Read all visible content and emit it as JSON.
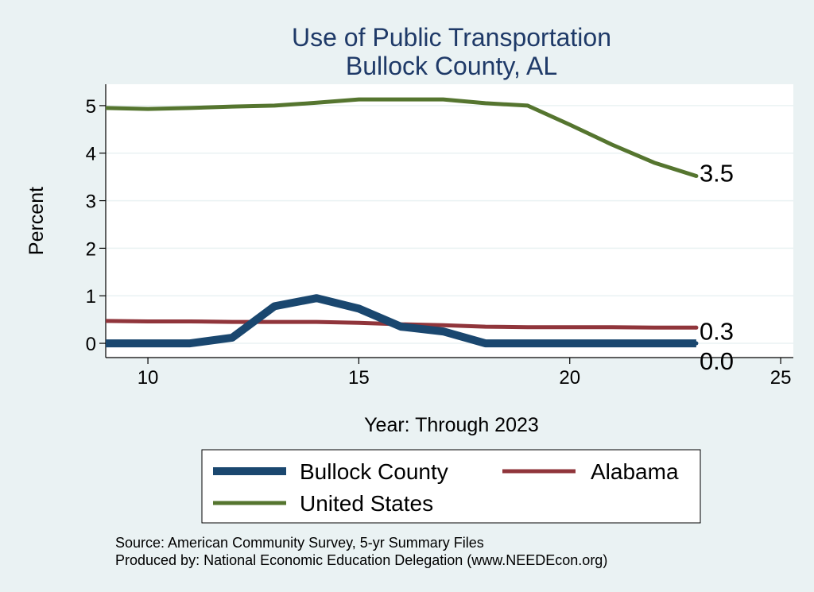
{
  "chart_data": {
    "type": "line",
    "title": "Use of Public Transportation",
    "subtitle": "Bullock County, AL",
    "xlabel": "Year: Through 2023",
    "ylabel": "Percent",
    "xlim": [
      9,
      25.3
    ],
    "ylim": [
      -0.3,
      5.45
    ],
    "x_ticks": [
      10,
      15,
      20,
      25
    ],
    "y_ticks": [
      0,
      1,
      2,
      3,
      4,
      5
    ],
    "grid": true,
    "legend_position": "bottom",
    "series": [
      {
        "name": "Bullock County",
        "color": "#1a476f",
        "x": [
          9,
          10,
          11,
          12,
          13,
          14,
          15,
          16,
          17,
          18,
          19,
          20,
          21,
          22,
          23
        ],
        "values": [
          0,
          0,
          0,
          0.12,
          0.78,
          0.95,
          0.73,
          0.35,
          0.25,
          0,
          0,
          0,
          0,
          0,
          0
        ],
        "end_label": "0.0"
      },
      {
        "name": "Alabama",
        "color": "#90353b",
        "x": [
          9,
          10,
          11,
          12,
          13,
          14,
          15,
          16,
          17,
          18,
          19,
          20,
          21,
          22,
          23
        ],
        "values": [
          0.47,
          0.46,
          0.46,
          0.45,
          0.45,
          0.45,
          0.43,
          0.4,
          0.38,
          0.35,
          0.34,
          0.34,
          0.34,
          0.33,
          0.33
        ],
        "end_label": "0.3"
      },
      {
        "name": "United States",
        "color": "#55752f",
        "x": [
          9,
          10,
          11,
          12,
          13,
          14,
          15,
          16,
          17,
          18,
          19,
          20,
          21,
          22,
          23
        ],
        "values": [
          4.95,
          4.93,
          4.95,
          4.98,
          5.0,
          5.06,
          5.13,
          5.13,
          5.13,
          5.05,
          5.0,
          4.6,
          4.18,
          3.8,
          3.52
        ],
        "end_label": "3.5"
      }
    ],
    "notes": [
      "Source: American Community Survey, 5-yr Summary Files",
      "Produced by: National Economic Education Delegation (www.NEEDEcon.org)"
    ]
  }
}
